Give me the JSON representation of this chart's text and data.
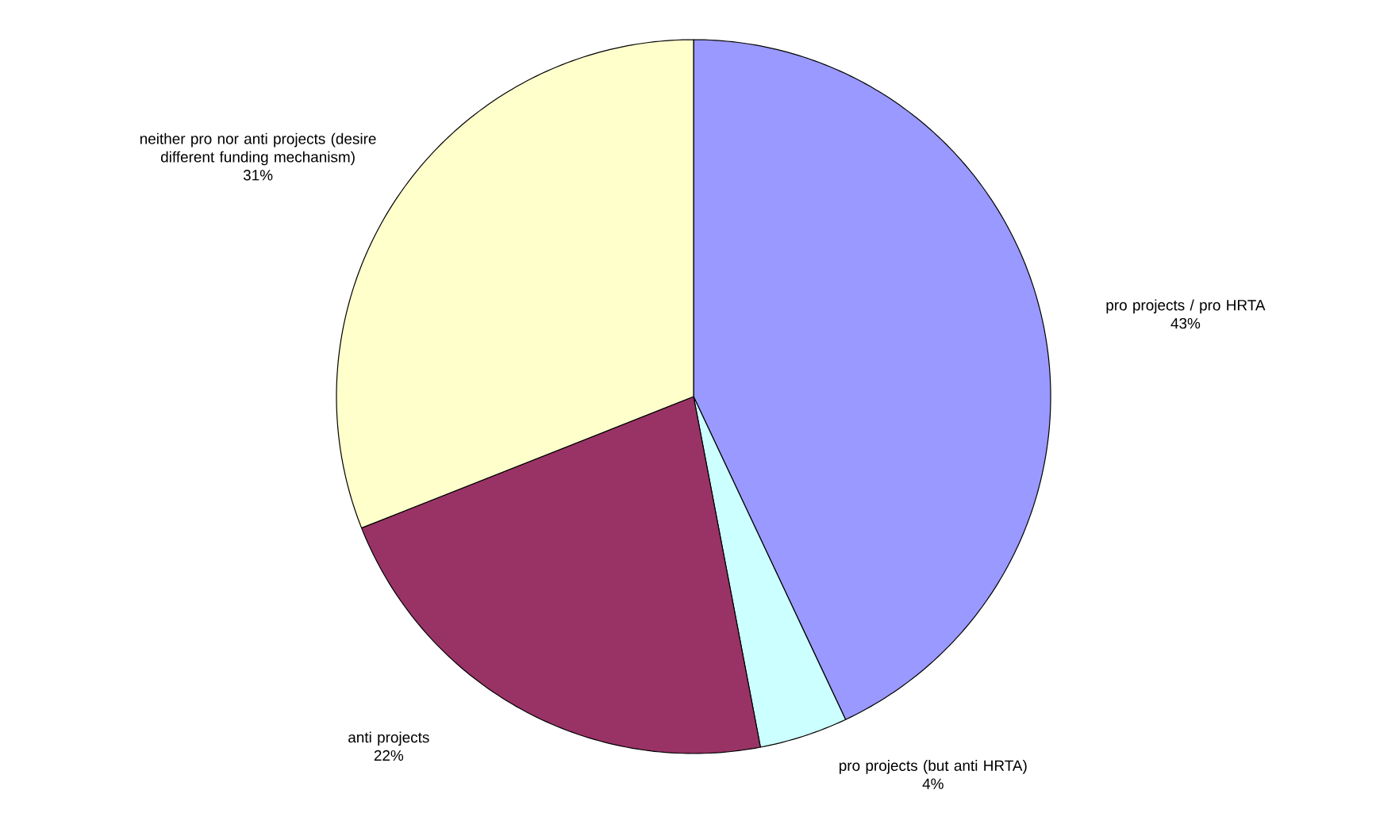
{
  "chart_data": {
    "type": "pie",
    "categories": [
      "pro projects / pro HRTA",
      "pro projects (but anti HRTA)",
      "anti projects",
      "neither pro nor anti projects (desire different funding mechanism)"
    ],
    "values": [
      43,
      4,
      22,
      31
    ],
    "value_labels": [
      "43%",
      "4%",
      "22%",
      "31%"
    ],
    "colors": [
      "#9999ff",
      "#ccffff",
      "#993366",
      "#ffffcc"
    ]
  }
}
